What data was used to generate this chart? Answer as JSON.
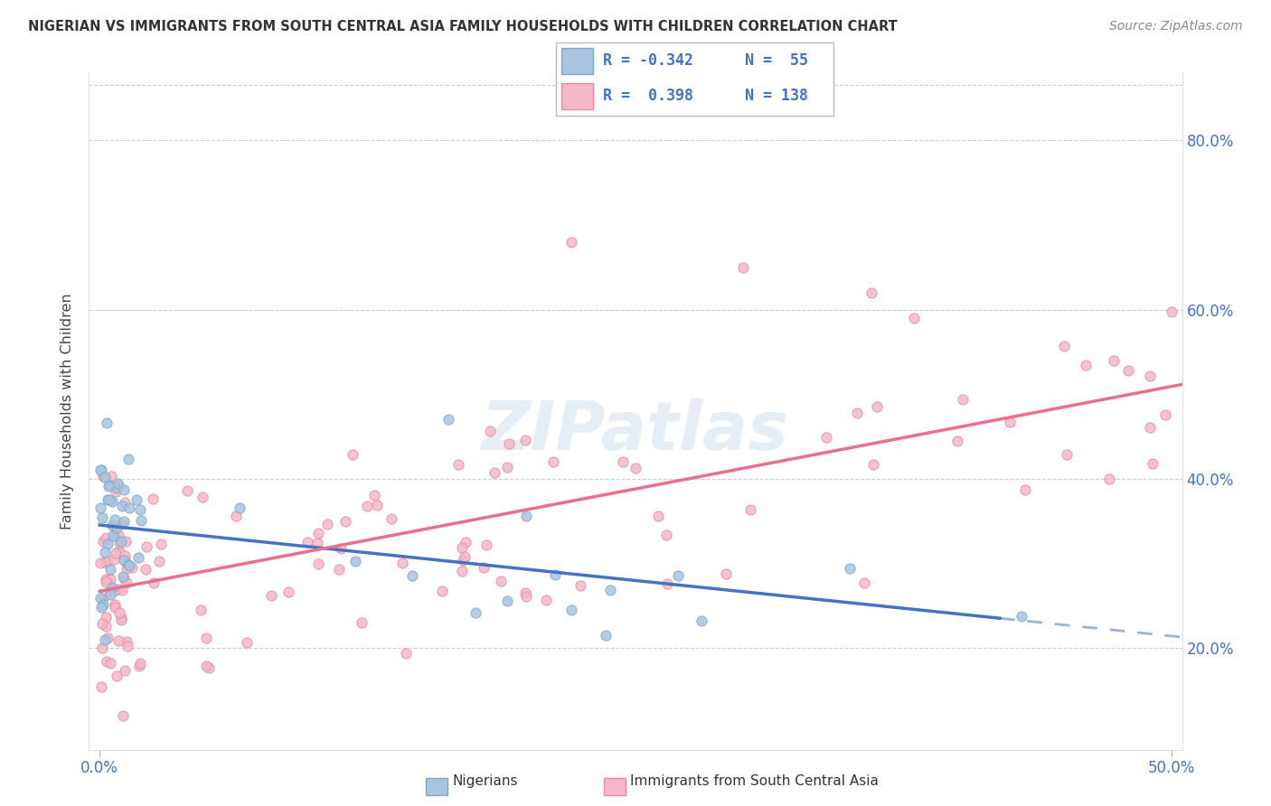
{
  "title": "NIGERIAN VS IMMIGRANTS FROM SOUTH CENTRAL ASIA FAMILY HOUSEHOLDS WITH CHILDREN CORRELATION CHART",
  "source": "Source: ZipAtlas.com",
  "ylabel": "Family Households with Children",
  "xlim": [
    -0.005,
    0.505
  ],
  "ylim": [
    0.08,
    0.88
  ],
  "xtick_labels": [
    "0.0%",
    "50.0%"
  ],
  "xtick_vals": [
    0.0,
    0.5
  ],
  "ytick_labels": [
    "20.0%",
    "40.0%",
    "60.0%",
    "80.0%"
  ],
  "ytick_vals": [
    0.2,
    0.4,
    0.6,
    0.8
  ],
  "nigerian_color": "#a8c4e0",
  "nigerian_edge": "#7aaac8",
  "immigrant_color": "#f4b8c8",
  "immigrant_edge": "#e88aa0",
  "nigerian_R": -0.342,
  "nigerian_N": 55,
  "immigrant_R": 0.398,
  "immigrant_N": 138,
  "nigerian_line_color": "#4472c4",
  "immigrant_line_color": "#e8708a",
  "watermark": "ZIPatlas",
  "legend_R1": "R = -0.342",
  "legend_N1": "N =  55",
  "legend_R2": "R =  0.398",
  "legend_N2": "N = 138",
  "grid_color": "#cccccc",
  "tick_color": "#4472c4",
  "title_color": "#333333",
  "source_color": "#888888"
}
